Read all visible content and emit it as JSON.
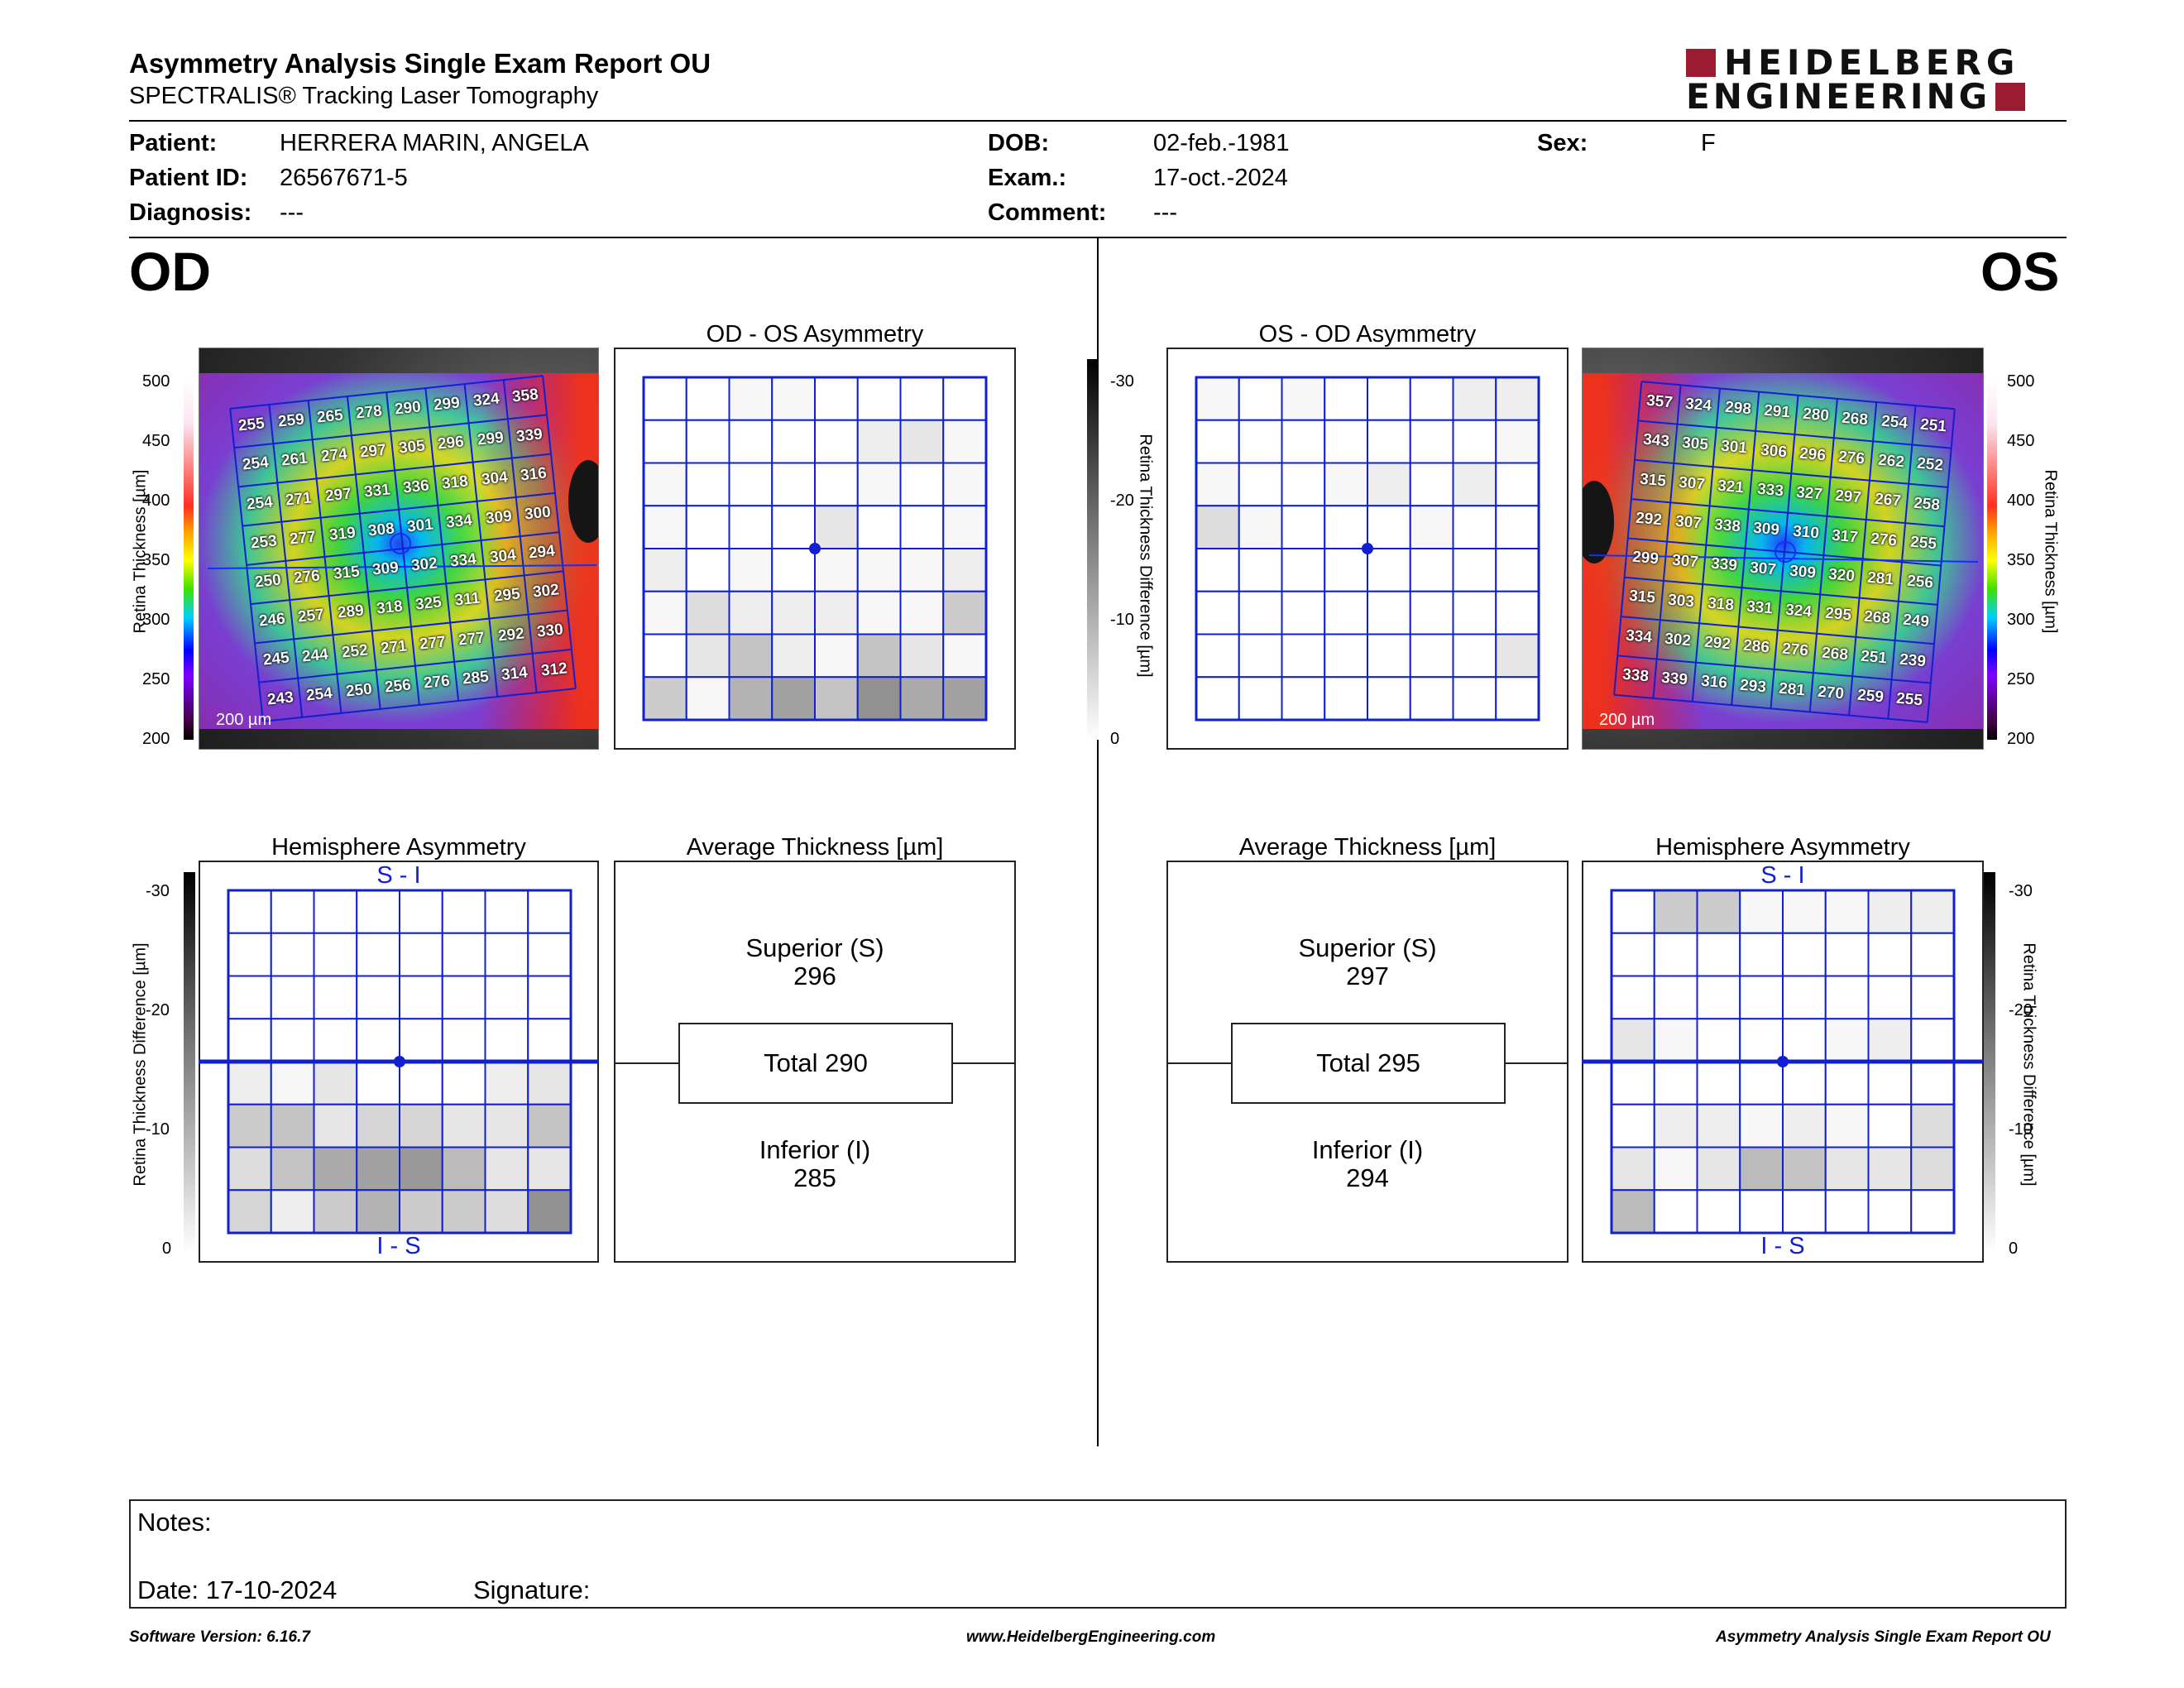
{
  "report": {
    "title": "Asymmetry Analysis Single Exam Report OU",
    "subtitle": "SPECTRALIS® Tracking Laser Tomography",
    "logo_line1": "HEIDELBERG",
    "logo_line2": "ENGINEERING"
  },
  "patient": {
    "patient_label": "Patient:",
    "patient_value": "HERRERA MARIN, ANGELA",
    "id_label": "Patient ID:",
    "id_value": "26567671-5",
    "diagnosis_label": "Diagnosis:",
    "diagnosis_value": "---",
    "dob_label": "DOB:",
    "dob_value": "02-feb.-1981",
    "exam_label": "Exam.:",
    "exam_value": "17-oct.-2024",
    "comment_label": "Comment:",
    "comment_value": "---",
    "sex_label": "Sex:",
    "sex_value": "F"
  },
  "od": {
    "eye_label": "OD",
    "asym_title": "OD - OS Asymmetry",
    "hemi_title": "Hemisphere Asymmetry",
    "avg_title": "Average Thickness [µm]",
    "superior_label": "Superior (S)",
    "superior_value": "296",
    "total_label": "Total 290",
    "inferior_label": "Inferior (I)",
    "inferior_value": "285",
    "hemi_top_label": "S - I",
    "hemi_bottom_label": "I - S",
    "scale_bar": "200 µm",
    "thickness_grid": [
      [
        255,
        259,
        265,
        278,
        290,
        299,
        324,
        358
      ],
      [
        254,
        261,
        274,
        297,
        305,
        296,
        299,
        339
      ],
      [
        254,
        271,
        297,
        331,
        336,
        318,
        304,
        316
      ],
      [
        253,
        277,
        319,
        308,
        301,
        334,
        309,
        300
      ],
      [
        250,
        276,
        315,
        309,
        302,
        334,
        304,
        294
      ],
      [
        246,
        257,
        289,
        318,
        325,
        311,
        295,
        302
      ],
      [
        245,
        244,
        252,
        271,
        277,
        277,
        292,
        330
      ],
      [
        243,
        254,
        250,
        256,
        276,
        285,
        314,
        312
      ]
    ],
    "asym_grid": [
      [
        0,
        0,
        1,
        1,
        0,
        0,
        0,
        0
      ],
      [
        0,
        0,
        0,
        0,
        0,
        2,
        3,
        1
      ],
      [
        1,
        0,
        0,
        0,
        0,
        1,
        0,
        1
      ],
      [
        1,
        0,
        0,
        0,
        3,
        0,
        0,
        1
      ],
      [
        2,
        0,
        1,
        0,
        1,
        1,
        1,
        2
      ],
      [
        1,
        4,
        2,
        2,
        2,
        1,
        1,
        6
      ],
      [
        0,
        3,
        7,
        2,
        1,
        7,
        3,
        1
      ],
      [
        6,
        1,
        9,
        11,
        7,
        13,
        10,
        11
      ]
    ],
    "hemi_grid": [
      [
        0,
        0,
        0,
        0,
        0,
        0,
        0,
        0
      ],
      [
        0,
        0,
        0,
        0,
        0,
        0,
        0,
        0
      ],
      [
        0,
        0,
        0,
        0,
        0,
        0,
        0,
        0
      ],
      [
        0,
        0,
        0,
        0,
        0,
        0,
        0,
        0
      ],
      [
        2,
        1,
        3,
        0,
        0,
        0,
        2,
        3
      ],
      [
        6,
        7,
        3,
        5,
        5,
        3,
        3,
        7
      ],
      [
        4,
        7,
        10,
        11,
        12,
        8,
        3,
        3
      ],
      [
        5,
        2,
        6,
        9,
        6,
        6,
        4,
        13
      ]
    ]
  },
  "os": {
    "eye_label": "OS",
    "asym_title": "OS - OD Asymmetry",
    "hemi_title": "Hemisphere Asymmetry",
    "avg_title": "Average Thickness [µm]",
    "superior_label": "Superior (S)",
    "superior_value": "297",
    "total_label": "Total 295",
    "inferior_label": "Inferior (I)",
    "inferior_value": "294",
    "hemi_top_label": "S - I",
    "hemi_bottom_label": "I - S",
    "scale_bar": "200 µm",
    "thickness_grid": [
      [
        357,
        324,
        298,
        291,
        280,
        268,
        254,
        251
      ],
      [
        343,
        305,
        301,
        306,
        296,
        276,
        262,
        252
      ],
      [
        315,
        307,
        321,
        333,
        327,
        297,
        267,
        258
      ],
      [
        292,
        307,
        338,
        309,
        310,
        317,
        276,
        255
      ],
      [
        299,
        307,
        339,
        307,
        309,
        320,
        281,
        256
      ],
      [
        315,
        303,
        318,
        331,
        324,
        295,
        268,
        249
      ],
      [
        334,
        302,
        292,
        286,
        276,
        268,
        251,
        239
      ],
      [
        338,
        339,
        316,
        293,
        281,
        270,
        259,
        255
      ]
    ],
    "asym_grid": [
      [
        1,
        0,
        1,
        0,
        0,
        0,
        2,
        2
      ],
      [
        0,
        0,
        0,
        0,
        0,
        0,
        0,
        1
      ],
      [
        1,
        0,
        0,
        1,
        2,
        0,
        2,
        0
      ],
      [
        4,
        1,
        0,
        0,
        0,
        1,
        0,
        0
      ],
      [
        0,
        0,
        0,
        0,
        0,
        0,
        0,
        0
      ],
      [
        0,
        0,
        0,
        0,
        0,
        0,
        0,
        0
      ],
      [
        0,
        0,
        0,
        0,
        0,
        0,
        0,
        3
      ],
      [
        0,
        0,
        0,
        0,
        0,
        0,
        0,
        0
      ]
    ],
    "hemi_grid": [
      [
        0,
        6,
        6,
        1,
        1,
        1,
        2,
        2
      ],
      [
        0,
        0,
        0,
        0,
        0,
        0,
        0,
        0
      ],
      [
        0,
        0,
        0,
        0,
        0,
        0,
        0,
        0
      ],
      [
        3,
        1,
        0,
        0,
        0,
        1,
        2,
        0
      ],
      [
        0,
        0,
        0,
        0,
        0,
        0,
        0,
        0
      ],
      [
        0,
        2,
        2,
        1,
        2,
        1,
        0,
        4
      ],
      [
        3,
        1,
        3,
        8,
        7,
        3,
        3,
        4
      ],
      [
        8,
        0,
        0,
        0,
        0,
        0,
        0,
        0
      ]
    ]
  },
  "scales": {
    "thickness_ticks": [
      "500",
      "450",
      "400",
      "350",
      "300",
      "250",
      "200"
    ],
    "thickness_axis_label": "Retina Thickness [µm]",
    "diff_ticks": [
      "-30",
      "-20",
      "-10",
      "0"
    ],
    "diff_axis_label": "Retina Thickness Difference [µm]"
  },
  "notes": {
    "notes_label": "Notes:",
    "date_label": "Date: 17-10-2024",
    "signature_label": "Signature:"
  },
  "footer": {
    "software": "Software Version: 6.16.7",
    "website": "www.HeidelbergEngineering.com",
    "report_name": "Asymmetry Analysis Single Exam Report OU"
  }
}
